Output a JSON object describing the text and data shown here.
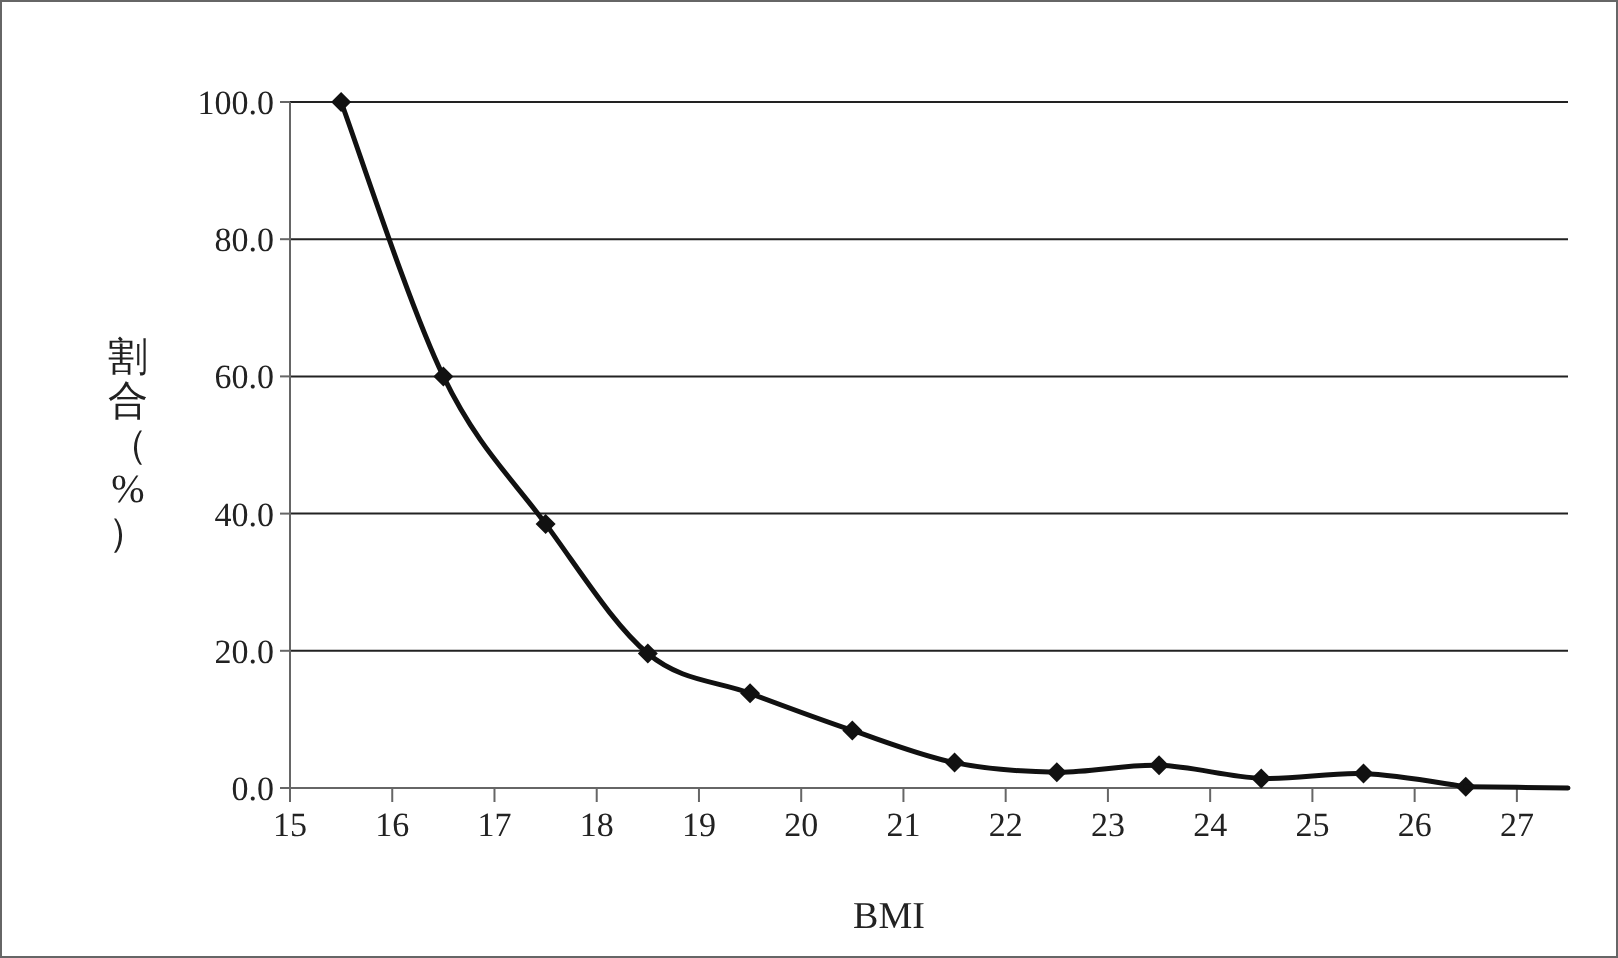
{
  "chart_data": {
    "type": "line",
    "xlabel": "BMI",
    "ylabel": "割合（%）",
    "xlim": [
      15,
      27.5
    ],
    "xticks": [
      15,
      16,
      17,
      18,
      19,
      20,
      21,
      22,
      23,
      24,
      25,
      26,
      27
    ],
    "ylim": [
      0,
      100
    ],
    "yticks": [
      {
        "value": 0,
        "label": "0.0"
      },
      {
        "value": 20,
        "label": "20.0"
      },
      {
        "value": 40,
        "label": "40.0"
      },
      {
        "value": 60,
        "label": "60.0"
      },
      {
        "value": 80,
        "label": "80.0"
      },
      {
        "value": 100,
        "label": "100.0"
      }
    ],
    "grid": "y",
    "line_style": "solid",
    "series": [
      {
        "color": "#111111",
        "marker": "diamond",
        "x": [
          15.5,
          16.5,
          17.5,
          18.5,
          19.5,
          20.5,
          21.5,
          22.5,
          23.5,
          24.5,
          25.5,
          26.5
        ],
        "values": [
          100,
          60,
          38.5,
          19.6,
          13.8,
          8.4,
          3.7,
          2.3,
          3.3,
          1.4,
          2.1,
          0.2
        ]
      },
      {
        "color": "#111111",
        "marker": "none",
        "x": [
          26.5,
          27.5
        ],
        "values": [
          0.2,
          0
        ]
      }
    ]
  }
}
